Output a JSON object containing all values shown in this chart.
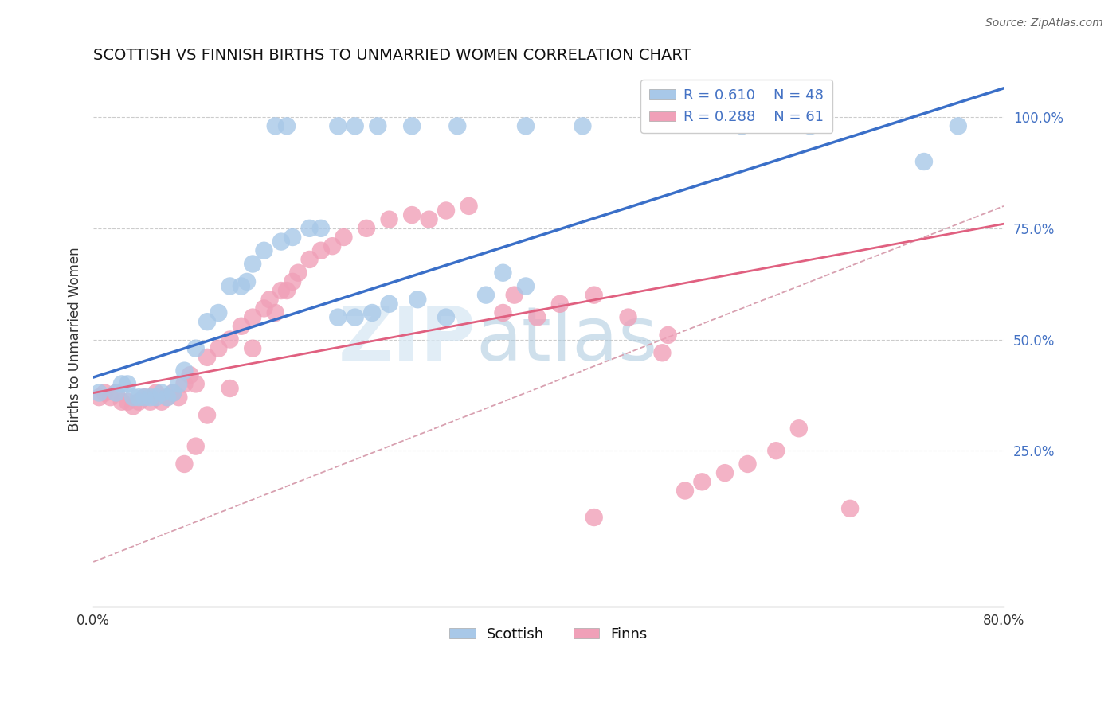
{
  "title": "SCOTTISH VS FINNISH BIRTHS TO UNMARRIED WOMEN CORRELATION CHART",
  "source": "Source: ZipAtlas.com",
  "ylabel": "Births to Unmarried Women",
  "legend_r1": "R = 0.610",
  "legend_n1": "N = 48",
  "legend_r2": "R = 0.288",
  "legend_n2": "N = 61",
  "scottish_color": "#a8c8e8",
  "finns_color": "#f0a0b8",
  "line_blue": "#3a6fc8",
  "line_pink": "#e06080",
  "dash_color": "#d8a0b0",
  "watermark_zip": "ZIP",
  "watermark_atlas": "atlas",
  "xlim": [
    0.0,
    0.8
  ],
  "ylim": [
    -0.1,
    1.1
  ],
  "yticks": [
    0.25,
    0.5,
    0.75,
    1.0
  ],
  "ytick_labels": [
    "25.0%",
    "50.0%",
    "75.0%",
    "100.0%"
  ],
  "xticks": [
    0.0,
    0.2,
    0.4,
    0.6,
    0.8
  ],
  "xtick_labels": [
    "0.0%",
    "",
    "",
    "",
    "80.0%"
  ],
  "blue_line_x": [
    0.0,
    0.8
  ],
  "blue_line_y": [
    0.415,
    1.065
  ],
  "pink_line_x": [
    0.0,
    0.8
  ],
  "pink_line_y": [
    0.38,
    0.76
  ],
  "dash_line_x": [
    0.0,
    0.8
  ],
  "dash_line_y": [
    0.0,
    0.8
  ],
  "scottish_x": [
    0.005,
    0.02,
    0.025,
    0.03,
    0.035,
    0.04,
    0.045,
    0.05,
    0.055,
    0.06,
    0.065,
    0.07,
    0.075,
    0.08,
    0.09,
    0.1,
    0.11,
    0.12,
    0.13,
    0.135,
    0.14,
    0.15,
    0.165,
    0.175,
    0.19,
    0.2,
    0.215,
    0.23,
    0.245,
    0.26,
    0.285,
    0.31,
    0.345,
    0.36,
    0.38,
    0.16,
    0.17,
    0.215,
    0.23,
    0.25,
    0.28,
    0.32,
    0.38,
    0.43,
    0.57,
    0.63,
    0.73,
    0.76
  ],
  "scottish_y": [
    0.38,
    0.38,
    0.4,
    0.4,
    0.37,
    0.37,
    0.37,
    0.37,
    0.37,
    0.38,
    0.37,
    0.38,
    0.4,
    0.43,
    0.48,
    0.54,
    0.56,
    0.62,
    0.62,
    0.63,
    0.67,
    0.7,
    0.72,
    0.73,
    0.75,
    0.75,
    0.55,
    0.55,
    0.56,
    0.58,
    0.59,
    0.55,
    0.6,
    0.65,
    0.62,
    0.98,
    0.98,
    0.98,
    0.98,
    0.98,
    0.98,
    0.98,
    0.98,
    0.98,
    0.98,
    0.98,
    0.9,
    0.98
  ],
  "finns_x": [
    0.005,
    0.01,
    0.015,
    0.02,
    0.025,
    0.03,
    0.035,
    0.04,
    0.045,
    0.05,
    0.055,
    0.06,
    0.065,
    0.07,
    0.075,
    0.08,
    0.085,
    0.09,
    0.1,
    0.11,
    0.12,
    0.13,
    0.14,
    0.15,
    0.155,
    0.16,
    0.165,
    0.17,
    0.175,
    0.18,
    0.19,
    0.2,
    0.21,
    0.22,
    0.24,
    0.26,
    0.28,
    0.295,
    0.31,
    0.33,
    0.36,
    0.37,
    0.39,
    0.41,
    0.44,
    0.47,
    0.5,
    0.505,
    0.52,
    0.535,
    0.555,
    0.575,
    0.6,
    0.62,
    0.665,
    0.08,
    0.09,
    0.1,
    0.12,
    0.14,
    0.44
  ],
  "finns_y": [
    0.37,
    0.38,
    0.37,
    0.38,
    0.36,
    0.36,
    0.35,
    0.36,
    0.37,
    0.36,
    0.38,
    0.36,
    0.37,
    0.38,
    0.37,
    0.4,
    0.42,
    0.4,
    0.46,
    0.48,
    0.5,
    0.53,
    0.55,
    0.57,
    0.59,
    0.56,
    0.61,
    0.61,
    0.63,
    0.65,
    0.68,
    0.7,
    0.71,
    0.73,
    0.75,
    0.77,
    0.78,
    0.77,
    0.79,
    0.8,
    0.56,
    0.6,
    0.55,
    0.58,
    0.6,
    0.55,
    0.47,
    0.51,
    0.16,
    0.18,
    0.2,
    0.22,
    0.25,
    0.3,
    0.12,
    0.22,
    0.26,
    0.33,
    0.39,
    0.48,
    0.1
  ]
}
